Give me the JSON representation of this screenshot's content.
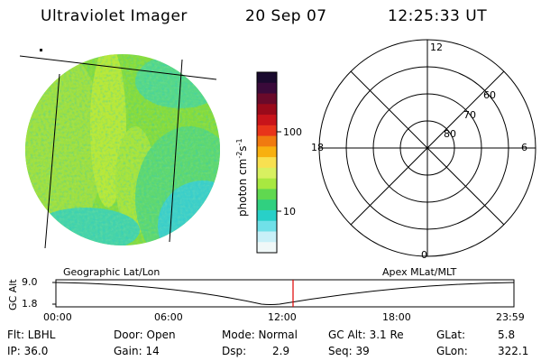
{
  "header": {
    "instrument": "Ultraviolet Imager",
    "date": "20 Sep 07",
    "time": "12:25:33 UT"
  },
  "colorbar": {
    "unit_label_main": "photon cm",
    "unit_sup1": "-2",
    "unit_mid": "s",
    "unit_sup2": "-1",
    "ticks": [
      "100",
      "10"
    ],
    "colors_top_to_bottom": [
      "#1a0a2e",
      "#3a0a3a",
      "#6a0a2a",
      "#9a0a1a",
      "#c8141a",
      "#e8341a",
      "#f07a10",
      "#f8b010",
      "#f8e050",
      "#d8f060",
      "#a8e840",
      "#60d850",
      "#30d080",
      "#28d0c8",
      "#70e0e8",
      "#c8f0f8",
      "#f0f8f8"
    ]
  },
  "polar": {
    "mlt_labels": [
      "12",
      "18",
      "6",
      "0"
    ],
    "lat_labels": [
      "60",
      "70",
      "80"
    ]
  },
  "timeline": {
    "left_label": "Geographic Lat/Lon",
    "right_label": "Apex MLat/MLT",
    "axis_title": "GC Alt",
    "y_ticks": [
      "9.0",
      "1.8"
    ],
    "x_ticks": [
      "00:00",
      "06:00",
      "12:00",
      "18:00",
      "23:59"
    ],
    "current_time_fraction": 0.5177,
    "marker_color": "#e00000"
  },
  "info": {
    "filter": "Flt: LBHL",
    "ip": "IP: 36.0",
    "door": "Door: Open",
    "gain": "Gain: 14",
    "mode": "Mode: Normal",
    "dsp_label": "Dsp:",
    "dsp_value": "2.9",
    "gc_alt": "GC Alt: 3.1 Re",
    "seq": "Seq: 39",
    "glat_label": "GLat:",
    "glat_value": "5.8",
    "glon_label": "GLon:",
    "glon_value": "322.1"
  }
}
